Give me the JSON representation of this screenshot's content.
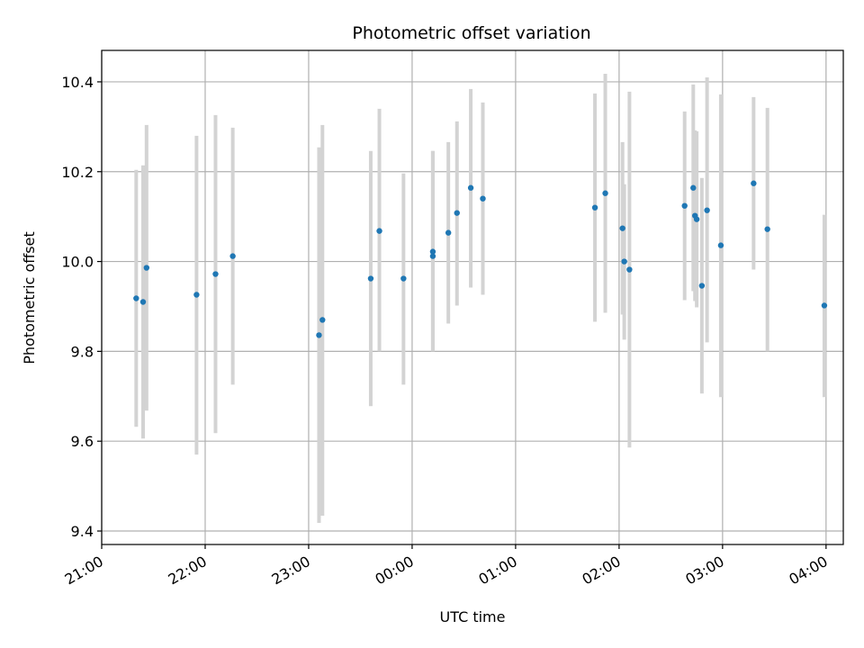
{
  "chart_data": {
    "type": "scatter",
    "title": "Photometric offset variation",
    "xlabel": "UTC time",
    "ylabel": "Photometric offset",
    "grid": true,
    "x_axis_type": "time",
    "x_unit": "minutes after 21:00",
    "xlim": [
      0,
      430
    ],
    "ylim": [
      9.37,
      10.47
    ],
    "x_ticks": [
      {
        "value": 0,
        "label": "21:00"
      },
      {
        "value": 60,
        "label": "22:00"
      },
      {
        "value": 120,
        "label": "23:00"
      },
      {
        "value": 180,
        "label": "00:00"
      },
      {
        "value": 240,
        "label": "01:00"
      },
      {
        "value": 300,
        "label": "02:00"
      },
      {
        "value": 360,
        "label": "03:00"
      },
      {
        "value": 420,
        "label": "04:00"
      }
    ],
    "y_ticks": [
      {
        "value": 9.4,
        "label": "9.4"
      },
      {
        "value": 9.6,
        "label": "9.6"
      },
      {
        "value": 9.8,
        "label": "9.8"
      },
      {
        "value": 10.0,
        "label": "10.0"
      },
      {
        "value": 10.2,
        "label": "10.2"
      },
      {
        "value": 10.4,
        "label": "10.4"
      }
    ],
    "colors": {
      "point": "#1f77b4",
      "error_bar": "#d3d3d3",
      "grid": "#b0b0b0"
    },
    "points": [
      {
        "time": "21:20",
        "y": 9.918,
        "low": 9.632,
        "high": 10.204
      },
      {
        "time": "21:24",
        "y": 9.91,
        "low": 9.606,
        "high": 10.214
      },
      {
        "time": "21:26",
        "y": 9.986,
        "low": 9.668,
        "high": 10.304
      },
      {
        "time": "21:55",
        "y": 9.926,
        "low": 9.57,
        "high": 10.28
      },
      {
        "time": "22:06",
        "y": 9.972,
        "low": 9.618,
        "high": 10.326
      },
      {
        "time": "22:16",
        "y": 10.012,
        "low": 9.726,
        "high": 10.298
      },
      {
        "time": "23:06",
        "y": 9.836,
        "low": 9.418,
        "high": 10.254
      },
      {
        "time": "23:08",
        "y": 9.87,
        "low": 9.434,
        "high": 10.304
      },
      {
        "time": "23:36",
        "y": 9.962,
        "low": 9.678,
        "high": 10.246
      },
      {
        "time": "23:41",
        "y": 10.068,
        "low": 9.8,
        "high": 10.34
      },
      {
        "time": "23:55",
        "y": 9.962,
        "low": 9.726,
        "high": 10.196
      },
      {
        "time": "00:12",
        "y": 10.022,
        "low": 9.8,
        "high": 10.246
      },
      {
        "time": "00:12",
        "y": 10.012,
        "low": 9.8,
        "high": 10.246
      },
      {
        "time": "00:21",
        "y": 10.064,
        "low": 9.862,
        "high": 10.266
      },
      {
        "time": "00:26",
        "y": 10.108,
        "low": 9.902,
        "high": 10.312
      },
      {
        "time": "00:34",
        "y": 10.164,
        "low": 9.942,
        "high": 10.384
      },
      {
        "time": "00:41",
        "y": 10.14,
        "low": 9.926,
        "high": 10.354
      },
      {
        "time": "01:46",
        "y": 10.12,
        "low": 9.866,
        "high": 10.374
      },
      {
        "time": "01:52",
        "y": 10.152,
        "low": 9.886,
        "high": 10.418
      },
      {
        "time": "02:02",
        "y": 10.074,
        "low": 9.882,
        "high": 10.266
      },
      {
        "time": "02:03",
        "y": 10.0,
        "low": 9.826,
        "high": 10.172
      },
      {
        "time": "02:06",
        "y": 9.982,
        "low": 9.586,
        "high": 10.378
      },
      {
        "time": "02:38",
        "y": 10.124,
        "low": 9.914,
        "high": 10.334
      },
      {
        "time": "02:43",
        "y": 10.164,
        "low": 9.934,
        "high": 10.394
      },
      {
        "time": "02:44",
        "y": 10.102,
        "low": 9.912,
        "high": 10.292
      },
      {
        "time": "02:45",
        "y": 10.094,
        "low": 9.898,
        "high": 10.29
      },
      {
        "time": "02:48",
        "y": 9.946,
        "low": 9.706,
        "high": 10.186
      },
      {
        "time": "02:51",
        "y": 10.114,
        "low": 9.82,
        "high": 10.41
      },
      {
        "time": "02:59",
        "y": 10.036,
        "low": 9.698,
        "high": 10.372
      },
      {
        "time": "03:18",
        "y": 10.174,
        "low": 9.982,
        "high": 10.366
      },
      {
        "time": "03:26",
        "y": 10.072,
        "low": 9.8,
        "high": 10.342
      },
      {
        "time": "03:59",
        "y": 9.902,
        "low": 9.698,
        "high": 10.104
      }
    ]
  }
}
